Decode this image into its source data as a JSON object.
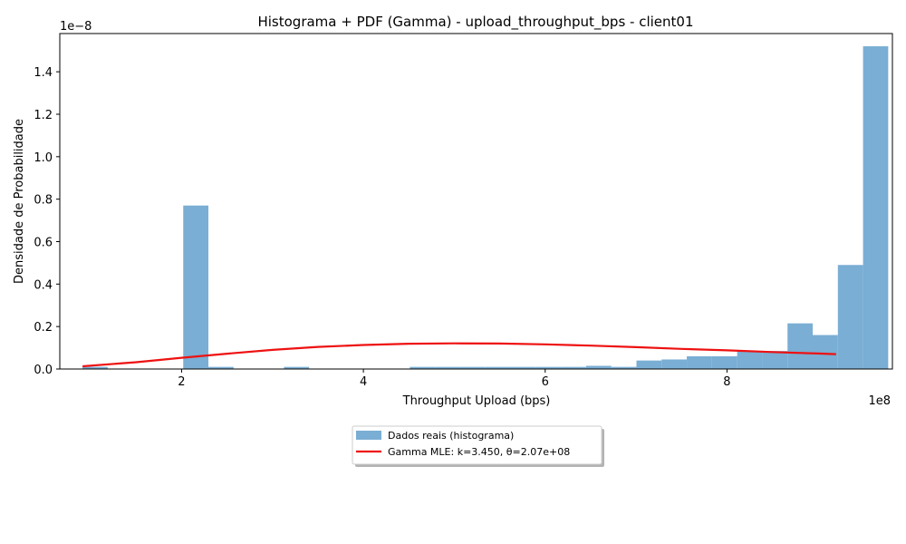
{
  "chart_data": {
    "type": "bar",
    "title": "Histograma + PDF (Gamma) - upload_throughput_bps - client01",
    "xlabel": "Throughput Upload (bps)",
    "ylabel": "Densidade de Probabilidade",
    "x_offset_label": "1e8",
    "y_offset_label": "1e−8",
    "xlim": [
      0.66,
      9.82
    ],
    "ylim": [
      0,
      1.58
    ],
    "x_ticks": [
      2,
      4,
      6,
      8
    ],
    "x_tick_labels": [
      "2",
      "4",
      "6",
      "8"
    ],
    "y_ticks": [
      0,
      0.2,
      0.4,
      0.6,
      0.8,
      1.0,
      1.2,
      1.4
    ],
    "y_tick_labels": [
      "0.0",
      "0.2",
      "0.4",
      "0.6",
      "0.8",
      "1.0",
      "1.2",
      "1.4"
    ],
    "grid": false,
    "legend_position": "below center",
    "colors": {
      "histogram": "#7aaed4",
      "pdf": "#ee1111"
    },
    "histogram": {
      "name": "Dados reais (histograma)",
      "bin_start": 0.91,
      "bin_width": 0.277,
      "values": [
        0.01,
        0,
        0,
        0,
        0.77,
        0.01,
        0,
        0,
        0.01,
        0,
        0,
        0,
        0,
        0.01,
        0.01,
        0.01,
        0.01,
        0.01,
        0.01,
        0.01,
        0.015,
        0.01,
        0.04,
        0.045,
        0.06,
        0.06,
        0.085,
        0.085,
        0.215,
        0.16,
        0.49,
        1.52
      ]
    },
    "pdf": {
      "name": "Gamma MLE: k=3.450, θ=2.07e+08",
      "x": [
        0.91,
        1.5,
        2.0,
        2.5,
        3.0,
        3.5,
        4.0,
        4.5,
        5.0,
        5.5,
        6.0,
        6.5,
        7.0,
        7.5,
        8.0,
        8.5,
        9.0,
        9.2
      ],
      "y": [
        0.013,
        0.032,
        0.053,
        0.072,
        0.09,
        0.104,
        0.113,
        0.119,
        0.121,
        0.12,
        0.116,
        0.11,
        0.103,
        0.095,
        0.088,
        0.08,
        0.073,
        0.07
      ]
    }
  }
}
